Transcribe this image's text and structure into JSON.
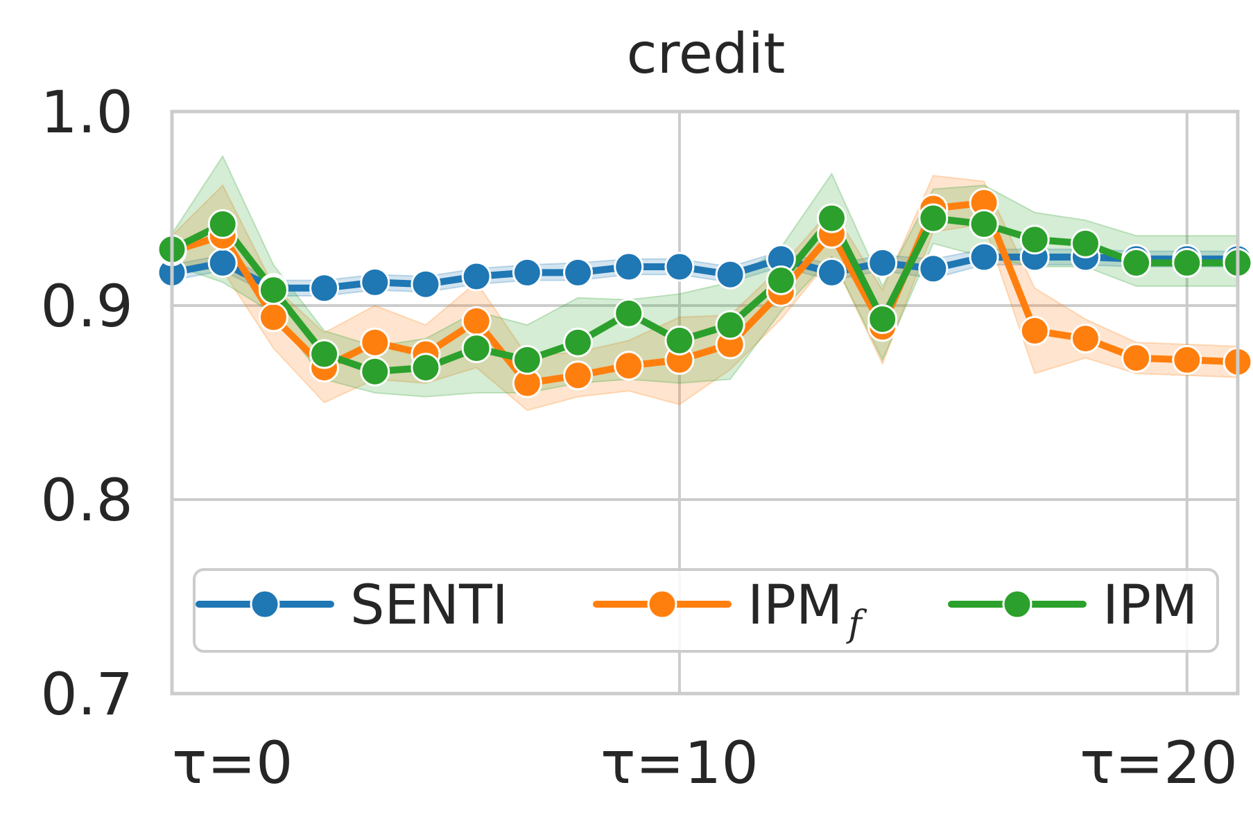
{
  "chart_data": {
    "type": "line",
    "title": "credit",
    "xlabel": "",
    "ylabel": "",
    "x": [
      0,
      1,
      2,
      3,
      4,
      5,
      6,
      7,
      8,
      9,
      10,
      11,
      12,
      13,
      14,
      15,
      16,
      17,
      18,
      19,
      20,
      21
    ],
    "xlim": [
      0,
      21
    ],
    "ylim": [
      0.7,
      1.0
    ],
    "xticks": [
      {
        "value": 0,
        "label": "τ=0"
      },
      {
        "value": 10,
        "label": "τ=10"
      },
      {
        "value": 20,
        "label": "τ=20"
      }
    ],
    "yticks": [
      {
        "value": 0.7,
        "label": "0.7"
      },
      {
        "value": 0.8,
        "label": "0.8"
      },
      {
        "value": 0.9,
        "label": "0.9"
      },
      {
        "value": 1.0,
        "label": "1.0"
      }
    ],
    "grid": true,
    "legend": {
      "placement": "lower center",
      "ncol": 3
    },
    "series": [
      {
        "name": "SENTI",
        "legend_label": "SENTI",
        "legend_sub": "",
        "color": "#1f77b4",
        "values": [
          0.917,
          0.922,
          0.909,
          0.909,
          0.912,
          0.911,
          0.915,
          0.917,
          0.917,
          0.92,
          0.92,
          0.916,
          0.924,
          0.917,
          0.922,
          0.919,
          0.925,
          0.925,
          0.925,
          0.924,
          0.924,
          0.924
        ],
        "band_low": [
          0.913,
          0.918,
          0.905,
          0.905,
          0.908,
          0.907,
          0.911,
          0.913,
          0.913,
          0.916,
          0.916,
          0.912,
          0.92,
          0.913,
          0.918,
          0.914,
          0.921,
          0.921,
          0.921,
          0.92,
          0.92,
          0.92
        ],
        "band_high": [
          0.921,
          0.926,
          0.913,
          0.913,
          0.916,
          0.915,
          0.919,
          0.921,
          0.922,
          0.924,
          0.924,
          0.92,
          0.928,
          0.921,
          0.926,
          0.924,
          0.929,
          0.929,
          0.929,
          0.928,
          0.928,
          0.928
        ]
      },
      {
        "name": "IPM_f",
        "legend_label": "IPM",
        "legend_sub": "f",
        "color": "#ff7f0e",
        "values": [
          0.928,
          0.936,
          0.894,
          0.868,
          0.881,
          0.875,
          0.892,
          0.86,
          0.864,
          0.869,
          0.872,
          0.88,
          0.907,
          0.937,
          0.889,
          0.95,
          0.953,
          0.887,
          0.883,
          0.873,
          0.872,
          0.871
        ],
        "band_low": [
          0.92,
          0.918,
          0.878,
          0.85,
          0.862,
          0.86,
          0.868,
          0.846,
          0.853,
          0.856,
          0.849,
          0.867,
          0.893,
          0.925,
          0.87,
          0.938,
          0.942,
          0.865,
          0.873,
          0.865,
          0.864,
          0.863
        ],
        "band_high": [
          0.936,
          0.962,
          0.91,
          0.886,
          0.9,
          0.89,
          0.912,
          0.874,
          0.876,
          0.882,
          0.894,
          0.895,
          0.92,
          0.95,
          0.908,
          0.967,
          0.964,
          0.909,
          0.893,
          0.881,
          0.88,
          0.879
        ]
      },
      {
        "name": "IPM",
        "legend_label": "IPM",
        "legend_sub": "",
        "color": "#2ca02c",
        "values": [
          0.929,
          0.942,
          0.908,
          0.875,
          0.866,
          0.868,
          0.878,
          0.872,
          0.881,
          0.896,
          0.882,
          0.89,
          0.913,
          0.945,
          0.893,
          0.945,
          0.942,
          0.934,
          0.932,
          0.922,
          0.922,
          0.922
        ],
        "band_low": [
          0.921,
          0.912,
          0.896,
          0.862,
          0.855,
          0.853,
          0.855,
          0.855,
          0.86,
          0.862,
          0.86,
          0.862,
          0.897,
          0.925,
          0.872,
          0.932,
          0.925,
          0.92,
          0.92,
          0.91,
          0.91,
          0.91
        ],
        "band_high": [
          0.937,
          0.977,
          0.921,
          0.887,
          0.879,
          0.883,
          0.897,
          0.89,
          0.904,
          0.903,
          0.906,
          0.912,
          0.93,
          0.968,
          0.91,
          0.96,
          0.962,
          0.948,
          0.944,
          0.936,
          0.936,
          0.936
        ]
      }
    ]
  }
}
